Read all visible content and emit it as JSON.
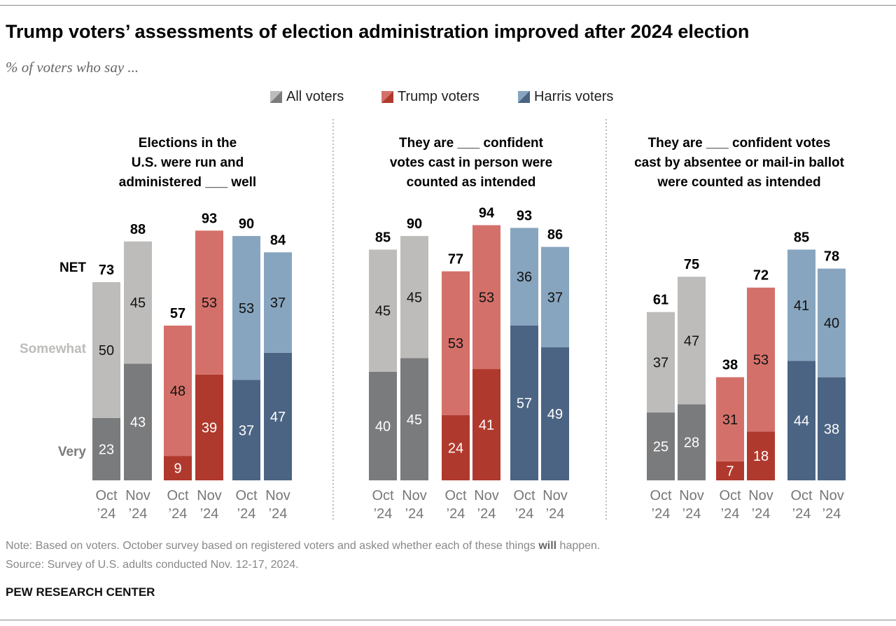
{
  "title": "Trump voters’ assessments of election administration improved after 2024 election",
  "subtitle": "% of voters who say ...",
  "legend": [
    {
      "name": "All voters",
      "light": "#bdbcba",
      "dark": "#7a7b7d"
    },
    {
      "name": "Trump voters",
      "light": "#d4706a",
      "dark": "#b0392d"
    },
    {
      "name": "Harris voters",
      "light": "#87a5bf",
      "dark": "#4b6483"
    }
  ],
  "row_labels": {
    "net": "NET",
    "somewhat": "Somewhat",
    "very": "Very"
  },
  "chart_data": {
    "type": "stacked-bar",
    "categories": [
      "Oct ’24",
      "Nov ’24"
    ],
    "stack_order": [
      "Very",
      "Somewhat"
    ],
    "panels": [
      {
        "title": [
          "Elections in the",
          "U.S. were run and",
          "administered  ___ well"
        ],
        "groups": [
          {
            "series": "All voters",
            "bars": [
              {
                "very": 23,
                "somewhat": 50,
                "net": 73
              },
              {
                "very": 43,
                "somewhat": 45,
                "net": 88
              }
            ]
          },
          {
            "series": "Trump voters",
            "bars": [
              {
                "very": 9,
                "somewhat": 48,
                "net": 57
              },
              {
                "very": 39,
                "somewhat": 53,
                "net": 93
              }
            ]
          },
          {
            "series": "Harris voters",
            "bars": [
              {
                "very": 37,
                "somewhat": 53,
                "net": 90
              },
              {
                "very": 47,
                "somewhat": 37,
                "net": 84
              }
            ]
          }
        ]
      },
      {
        "title": [
          "They are ___ confident",
          "votes cast in person were",
          "counted as intended"
        ],
        "groups": [
          {
            "series": "All voters",
            "bars": [
              {
                "very": 40,
                "somewhat": 45,
                "net": 85
              },
              {
                "very": 45,
                "somewhat": 45,
                "net": 90
              }
            ]
          },
          {
            "series": "Trump voters",
            "bars": [
              {
                "very": 24,
                "somewhat": 53,
                "net": 77
              },
              {
                "very": 41,
                "somewhat": 53,
                "net": 94
              }
            ]
          },
          {
            "series": "Harris voters",
            "bars": [
              {
                "very": 57,
                "somewhat": 36,
                "net": 93
              },
              {
                "very": 49,
                "somewhat": 37,
                "net": 86
              }
            ]
          }
        ]
      },
      {
        "title": [
          "They are ___ confident votes",
          "cast by absentee or mail-in ballot",
          "were counted as intended"
        ],
        "groups": [
          {
            "series": "All voters",
            "bars": [
              {
                "very": 25,
                "somewhat": 37,
                "net": 61
              },
              {
                "very": 28,
                "somewhat": 47,
                "net": 75
              }
            ]
          },
          {
            "series": "Trump voters",
            "bars": [
              {
                "very": 7,
                "somewhat": 31,
                "net": 38
              },
              {
                "very": 18,
                "somewhat": 53,
                "net": 72
              }
            ]
          },
          {
            "series": "Harris voters",
            "bars": [
              {
                "very": 44,
                "somewhat": 41,
                "net": 85
              },
              {
                "very": 38,
                "somewhat": 40,
                "net": 78
              }
            ]
          }
        ]
      }
    ]
  },
  "note": "Note: Based on voters. October survey based on registered voters and asked whether each of these things ",
  "note_bold": "will",
  "note_end": " happen.",
  "source": "Source: Survey of U.S. adults conducted Nov. 12-17, 2024.",
  "brand": "PEW RESEARCH CENTER"
}
